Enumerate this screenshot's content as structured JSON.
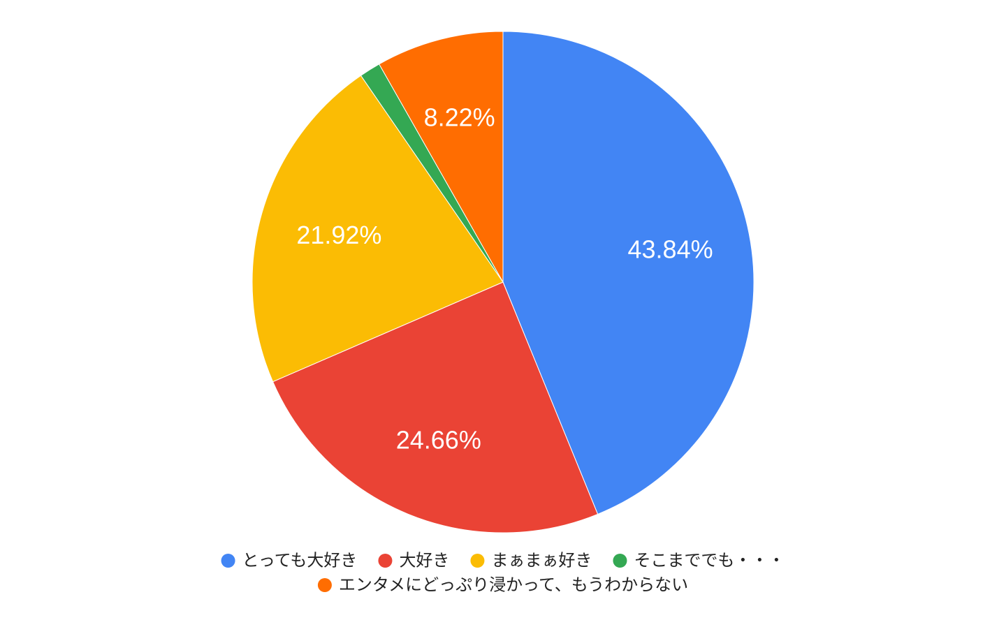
{
  "chart_data": {
    "type": "pie",
    "categories": [
      "とっても大好き",
      "大好き",
      "まぁまぁ好き",
      "そこまででも・・・",
      "エンタメにどっぷり浸かって、もうわからない"
    ],
    "values": [
      43.84,
      24.66,
      21.92,
      1.37,
      8.22
    ],
    "value_labels": [
      "43.84%",
      "24.66%",
      "21.92%",
      null,
      "8.22%"
    ],
    "colors": [
      "#4285f4",
      "#ea4335",
      "#fbbc04",
      "#34a853",
      "#ff6d01"
    ],
    "legend": "bottom"
  }
}
